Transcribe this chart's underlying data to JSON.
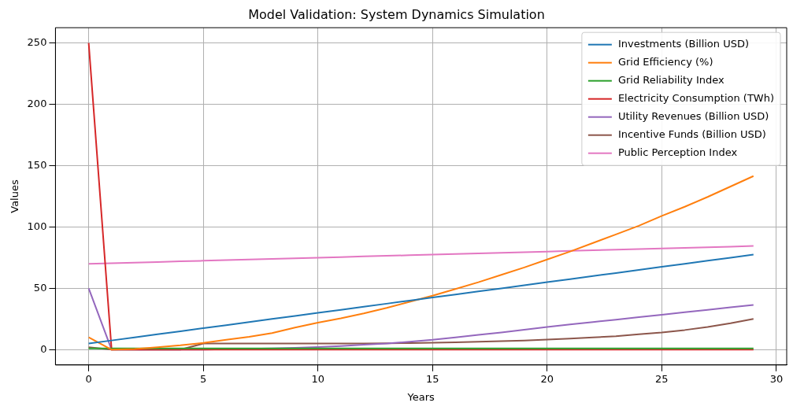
{
  "chart_data": {
    "type": "line",
    "title": "Model Validation: System Dynamics Simulation",
    "xlabel": "Years",
    "ylabel": "Values",
    "x": [
      0,
      1,
      2,
      3,
      4,
      5,
      6,
      7,
      8,
      9,
      10,
      11,
      12,
      13,
      14,
      15,
      16,
      17,
      18,
      19,
      20,
      21,
      22,
      23,
      24,
      25,
      26,
      27,
      28,
      29
    ],
    "xlim": [
      -1.45,
      30.45
    ],
    "xticks": [
      0,
      5,
      10,
      15,
      20,
      25,
      30
    ],
    "ylim": [
      -12.5,
      262.5
    ],
    "yticks": [
      0,
      50,
      100,
      150,
      200,
      250
    ],
    "grid": true,
    "legend": "top right",
    "marker": "none",
    "line_style": "solid",
    "series": [
      {
        "name": "Investments (Billion USD)",
        "color": "#1f77b4",
        "values": [
          5,
          7.5,
          10,
          12.5,
          15,
          17.5,
          20,
          22.5,
          25,
          27.5,
          30,
          32.5,
          35,
          37.5,
          40,
          42.5,
          45,
          47.5,
          50,
          52.5,
          55,
          57.5,
          60,
          62.5,
          65,
          67.5,
          70,
          72.5,
          75,
          77.5
        ]
      },
      {
        "name": "Grid Efficiency (%)",
        "color": "#ff7f0e",
        "values": [
          10,
          0,
          0.5,
          2,
          3.5,
          5.5,
          8,
          10.5,
          13.5,
          18,
          22,
          25.5,
          29.5,
          34,
          39,
          44,
          49.5,
          55,
          61,
          67,
          73.5,
          80,
          87,
          94,
          101,
          109,
          116.5,
          124.5,
          133,
          141.5
        ]
      },
      {
        "name": "Grid Reliability Index",
        "color": "#2ca02c",
        "values": [
          1,
          1,
          1,
          1,
          1,
          1,
          1,
          1,
          1,
          1,
          1,
          1,
          1,
          1,
          1,
          1,
          1,
          1,
          1,
          1,
          1,
          1,
          1,
          1,
          1,
          1,
          1,
          1,
          1,
          1
        ]
      },
      {
        "name": "Electricity Consumption (TWh)",
        "color": "#d62728",
        "values": [
          250,
          0,
          0,
          0,
          0,
          0,
          0,
          0,
          0,
          0,
          0,
          0,
          0,
          0,
          0,
          0,
          0,
          0,
          0,
          0,
          0,
          0,
          0,
          0,
          0,
          0,
          0,
          0,
          0,
          0
        ]
      },
      {
        "name": "Utility Revenues (Billion USD)",
        "color": "#9467bd",
        "values": [
          50,
          0,
          0,
          0,
          0,
          0,
          0.3,
          0.7,
          1,
          1.5,
          2.2,
          3,
          4,
          5,
          6.5,
          8,
          10,
          12,
          14,
          16.2,
          18.5,
          20.5,
          22.5,
          24.5,
          26.5,
          28.5,
          30.5,
          32.5,
          34.5,
          36.5
        ]
      },
      {
        "name": "Incentive Funds (Billion USD)",
        "color": "#8c564b",
        "values": [
          2,
          0,
          0,
          0,
          0,
          5,
          5,
          5,
          5,
          5,
          5,
          5,
          5,
          5.2,
          5.4,
          5.7,
          6,
          6.4,
          6.9,
          7.5,
          8.2,
          9,
          10,
          11,
          12.5,
          14,
          16,
          18.5,
          21.5,
          25
        ]
      },
      {
        "name": "Public Perception Index",
        "color": "#e377c2",
        "values": [
          70,
          70.5,
          71,
          71.5,
          72,
          72.5,
          73,
          73.5,
          74,
          74.5,
          75,
          75.5,
          76,
          76.5,
          77,
          77.5,
          78,
          78.5,
          79,
          79.5,
          80,
          80.5,
          81,
          81.5,
          82,
          82.5,
          83,
          83.5,
          84,
          84.5
        ]
      }
    ]
  }
}
